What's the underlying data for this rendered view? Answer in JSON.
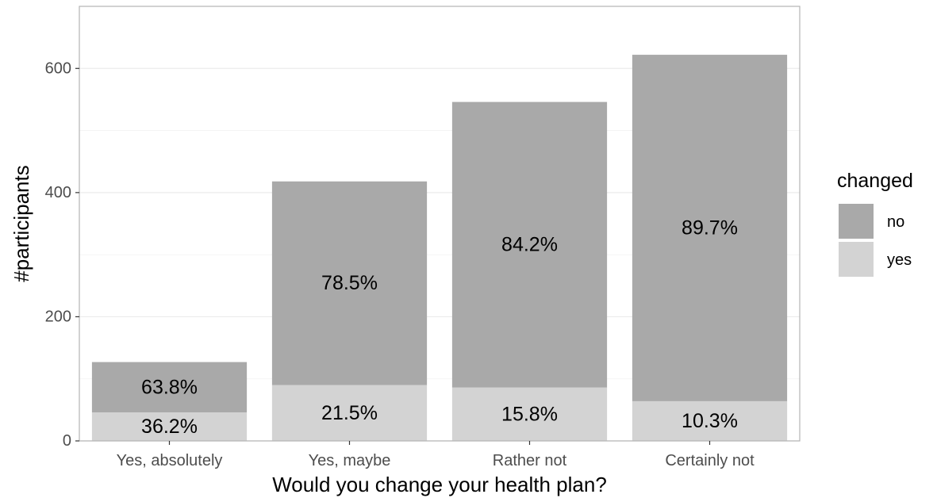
{
  "chart_data": {
    "type": "bar",
    "stacked": true,
    "title": "",
    "xlabel": "Would you change your health plan?",
    "ylabel": "#participants",
    "ylim": [
      0,
      700
    ],
    "yticks": [
      0,
      200,
      400,
      600
    ],
    "ytick_labels": [
      "0",
      "200",
      "400",
      "600"
    ],
    "grid": true,
    "categories": [
      "Yes, absolutely",
      "Yes, maybe",
      "Rather not",
      "Certainly not"
    ],
    "series": [
      {
        "name": "yes",
        "color": "#d3d3d3",
        "values": [
          46,
          90,
          86,
          64
        ],
        "labels": [
          "36.2%",
          "21.5%",
          "15.8%",
          "10.3%"
        ]
      },
      {
        "name": "no",
        "color": "#a9a9a9",
        "values": [
          81,
          328,
          460,
          558
        ],
        "labels": [
          "63.8%",
          "78.5%",
          "84.2%",
          "89.7%"
        ]
      }
    ],
    "legend": {
      "title": "changed",
      "position": "right",
      "entries": [
        {
          "label": "no",
          "color": "#a9a9a9"
        },
        {
          "label": "yes",
          "color": "#d3d3d3"
        }
      ]
    }
  }
}
